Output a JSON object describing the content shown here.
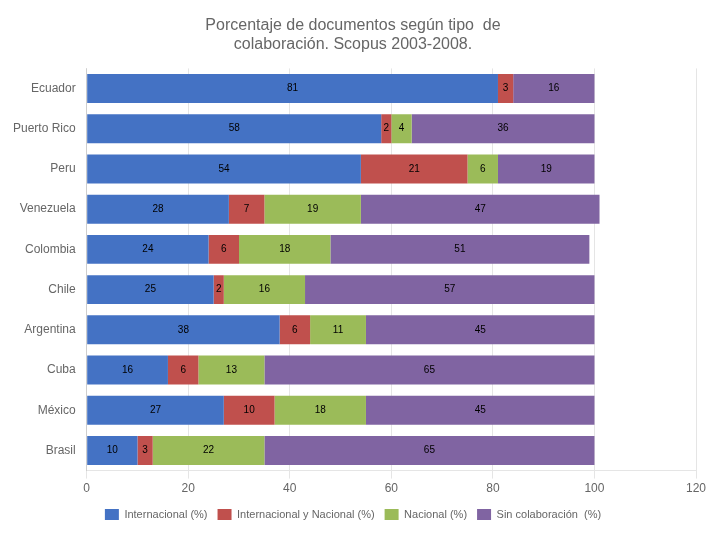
{
  "chart_data": {
    "type": "bar",
    "orientation": "horizontal",
    "stacked": true,
    "title": "Porcentaje de documentos según tipo  de\ncolaboración. Scopus 2003-2008.",
    "categories": [
      "Ecuador",
      "Puerto Rico",
      "Peru",
      "Venezuela",
      "Colombia",
      "Chile",
      "Argentina",
      "Cuba",
      "México",
      "Brasil"
    ],
    "series": [
      {
        "name": "Internacional (%)",
        "color": "#4472C4",
        "values": [
          81,
          58,
          54,
          28,
          24,
          25,
          38,
          16,
          27,
          10
        ]
      },
      {
        "name": "Internacional y Nacional (%)",
        "color": "#C0504D",
        "values": [
          3,
          2,
          21,
          7,
          6,
          2,
          6,
          6,
          10,
          3
        ]
      },
      {
        "name": "Nacional (%)",
        "color": "#9BBB59",
        "values": [
          0,
          4,
          6,
          19,
          18,
          16,
          11,
          13,
          18,
          22
        ]
      },
      {
        "name": "Sin colaboración  (%)",
        "color": "#8064A2",
        "values": [
          16,
          36,
          19,
          47,
          51,
          57,
          45,
          65,
          45,
          65
        ]
      }
    ],
    "xlim": [
      0,
      120
    ],
    "xticks": [
      0,
      20,
      40,
      60,
      80,
      100,
      120
    ],
    "grid": true,
    "legend": "bottom",
    "data_labels": true
  }
}
